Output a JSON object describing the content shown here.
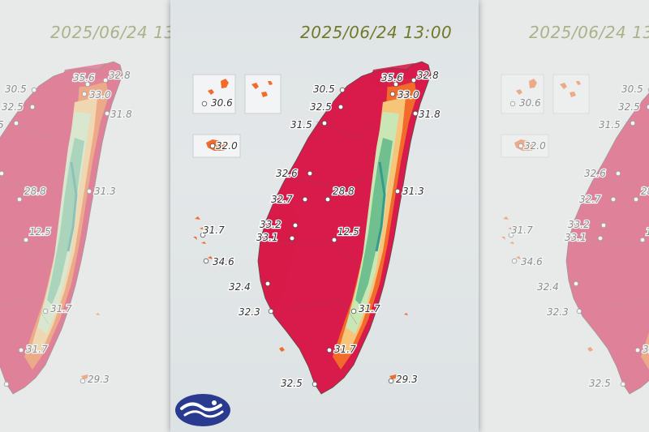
{
  "map": {
    "timestamp": "2025/06/24 13:00",
    "stations": [
      {
        "value": "35.6"
      },
      {
        "value": "32.8"
      },
      {
        "value": "30.5"
      },
      {
        "value": "33.0"
      },
      {
        "value": "32.5"
      },
      {
        "value": "31.8"
      },
      {
        "value": "31.5"
      },
      {
        "value": "30.6"
      },
      {
        "value": "32.0"
      },
      {
        "value": "32.6"
      },
      {
        "value": "32.7"
      },
      {
        "value": "28.8"
      },
      {
        "value": "31.3"
      },
      {
        "value": "33.2"
      },
      {
        "value": "31.7"
      },
      {
        "value": "33.1"
      },
      {
        "value": "12.5"
      },
      {
        "value": "34.6"
      },
      {
        "value": "32.4"
      },
      {
        "value": "32.3"
      },
      {
        "value": "31.7"
      },
      {
        "value": "31.7"
      },
      {
        "value": "32.5"
      },
      {
        "value": "29.3"
      }
    ],
    "colors": {
      "hot": "#d81b4a",
      "warm": "#f26b2a",
      "mild": "#f6c57a",
      "cool": "#c9e6b4",
      "mountain": "#6fbf8f",
      "peak": "#3a9a8a",
      "timestamp": "#707a2a",
      "logo": "#2a3b8f"
    },
    "icons": {
      "logo": "agency-logo-icon"
    }
  }
}
